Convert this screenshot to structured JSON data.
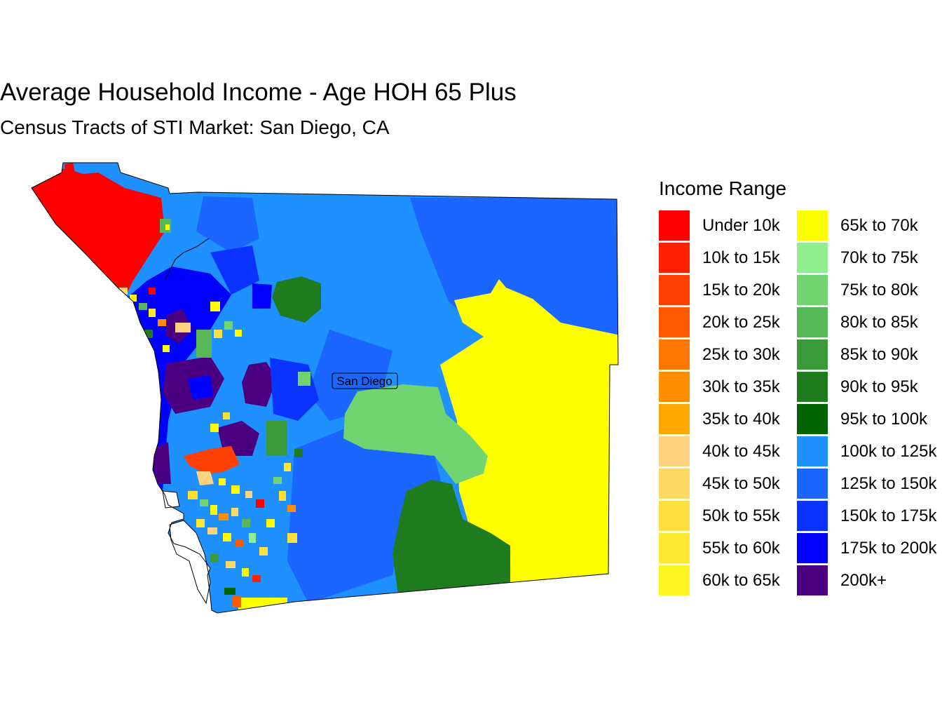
{
  "title": "Average Household Income - Age HOH 65 Plus",
  "subtitle": "Census Tracts of STI Market: San Diego, CA",
  "map_label": "San Diego",
  "legend": {
    "title": "Income Range",
    "items": [
      {
        "label": "Under 10k",
        "color": "#ff0000"
      },
      {
        "label": "10k to 15k",
        "color": "#ff2000"
      },
      {
        "label": "15k to 20k",
        "color": "#ff4000"
      },
      {
        "label": "20k to 25k",
        "color": "#ff5a00"
      },
      {
        "label": "25k to 30k",
        "color": "#ff7600"
      },
      {
        "label": "30k to 35k",
        "color": "#ff8f00"
      },
      {
        "label": "35k to 40k",
        "color": "#ffa800"
      },
      {
        "label": "40k to 45k",
        "color": "#ffd280"
      },
      {
        "label": "45k to 50k",
        "color": "#ffd966"
      },
      {
        "label": "50k to 55k",
        "color": "#ffe040"
      },
      {
        "label": "55k to 60k",
        "color": "#ffe830"
      },
      {
        "label": "60k to 65k",
        "color": "#fff520"
      },
      {
        "label": "65k to 70k",
        "color": "#ffff00"
      },
      {
        "label": "70k to 75k",
        "color": "#90ee90"
      },
      {
        "label": "75k to 80k",
        "color": "#70d470"
      },
      {
        "label": "80k to 85k",
        "color": "#56b856"
      },
      {
        "label": "85k to 90k",
        "color": "#3a9a3a"
      },
      {
        "label": "90k to 95k",
        "color": "#1e7b1e"
      },
      {
        "label": "95k to 100k",
        "color": "#006400"
      },
      {
        "label": "100k to 125k",
        "color": "#1e90ff"
      },
      {
        "label": "125k to 150k",
        "color": "#1a66ff"
      },
      {
        "label": "150k to 175k",
        "color": "#0a33ff"
      },
      {
        "label": "175k to 200k",
        "color": "#0000ff"
      },
      {
        "label": "200k+",
        "color": "#4b0082"
      }
    ]
  }
}
